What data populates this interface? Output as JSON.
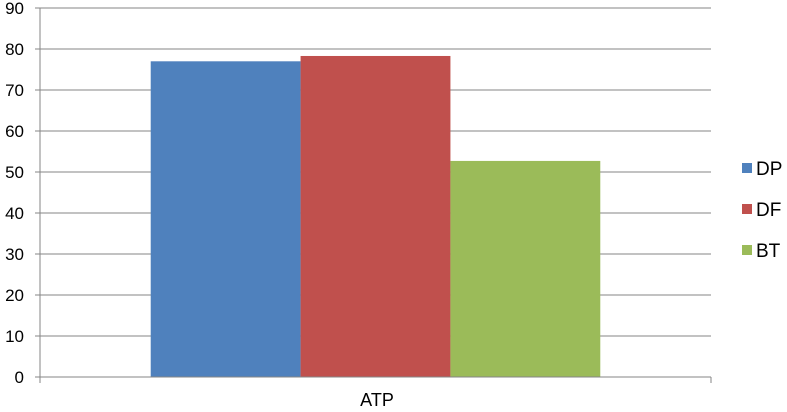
{
  "chart_data": {
    "type": "bar",
    "title": "",
    "xlabel": "",
    "ylabel": "",
    "categories": [
      "ATP"
    ],
    "series": [
      {
        "name": "DP",
        "values": [
          77
        ],
        "color": "#4f81bd"
      },
      {
        "name": "DF",
        "values": [
          78.3
        ],
        "color": "#c0504d"
      },
      {
        "name": "BT",
        "values": [
          52.7
        ],
        "color": "#9bbb59"
      }
    ],
    "ylim": [
      0,
      90
    ],
    "yticks": [
      "0",
      "10",
      "20",
      "30",
      "40",
      "50",
      "60",
      "70",
      "80",
      "90"
    ],
    "grid": true,
    "legend_position": "right"
  }
}
